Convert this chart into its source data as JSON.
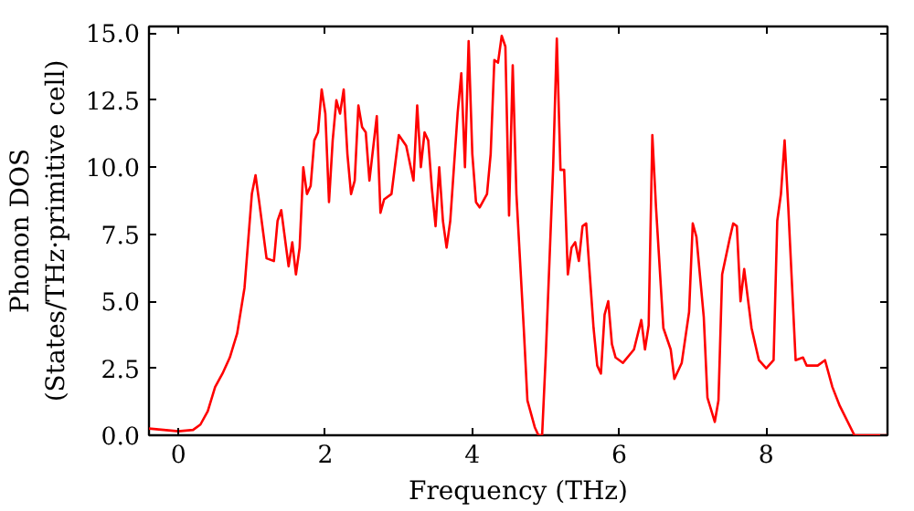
{
  "chart_data": {
    "type": "line",
    "xlabel": "Frequency (THz)",
    "ylabel": "Phonon DOS\n(States/THz·primitive cell)",
    "xlim": [
      -0.4,
      9.65
    ],
    "ylim": [
      0,
      15.25
    ],
    "xticks": [
      0,
      2,
      4,
      6,
      8
    ],
    "yticks": [
      {
        "value": 0,
        "label": "0.0"
      },
      {
        "value": 2.5,
        "label": "2.5"
      },
      {
        "value": 5,
        "label": "5.0"
      },
      {
        "value": 7.5,
        "label": "7.5"
      },
      {
        "value": 10,
        "label": "10.0"
      },
      {
        "value": 12.5,
        "label": "12.5"
      },
      {
        "value": 15,
        "label": "15.0"
      }
    ],
    "grid": false,
    "series": [
      {
        "color": "#ff0000",
        "x": [
          -0.4,
          0,
          0.2,
          0.3,
          0.4,
          0.5,
          0.6,
          0.7,
          0.8,
          0.9,
          1.0,
          1.05,
          1.1,
          1.2,
          1.3,
          1.35,
          1.4,
          1.5,
          1.55,
          1.6,
          1.65,
          1.7,
          1.75,
          1.8,
          1.85,
          1.9,
          1.95,
          2.0,
          2.05,
          2.1,
          2.15,
          2.2,
          2.25,
          2.3,
          2.35,
          2.4,
          2.45,
          2.5,
          2.55,
          2.6,
          2.7,
          2.75,
          2.8,
          2.9,
          3.0,
          3.1,
          3.2,
          3.25,
          3.3,
          3.35,
          3.4,
          3.45,
          3.5,
          3.55,
          3.6,
          3.65,
          3.7,
          3.8,
          3.85,
          3.9,
          3.95,
          4.0,
          4.05,
          4.1,
          4.2,
          4.25,
          4.3,
          4.35,
          4.4,
          4.45,
          4.5,
          4.55,
          4.6,
          4.7,
          4.75,
          4.85,
          4.9,
          4.95,
          5.0,
          5.1,
          5.15,
          5.2,
          5.25,
          5.3,
          5.35,
          5.4,
          5.45,
          5.5,
          5.55,
          5.65,
          5.7,
          5.75,
          5.8,
          5.85,
          5.9,
          5.95,
          6.05,
          6.2,
          6.3,
          6.35,
          6.4,
          6.45,
          6.5,
          6.6,
          6.7,
          6.75,
          6.85,
          6.95,
          7.0,
          7.05,
          7.15,
          7.2,
          7.3,
          7.35,
          7.4,
          7.5,
          7.55,
          7.6,
          7.65,
          7.7,
          7.8,
          7.9,
          8.0,
          8.1,
          8.15,
          8.2,
          8.25,
          8.3,
          8.4,
          8.5,
          8.55,
          8.7,
          8.8,
          8.9,
          9.0,
          9.2,
          9.65
        ],
        "values": [
          0.25,
          0.15,
          0.2,
          0.4,
          0.9,
          1.8,
          2.3,
          2.9,
          3.8,
          5.5,
          9.0,
          9.7,
          8.7,
          6.6,
          6.5,
          8.0,
          8.4,
          6.3,
          7.2,
          6.0,
          7.0,
          10.0,
          9.0,
          9.3,
          11.0,
          11.3,
          12.9,
          12.0,
          8.7,
          11.0,
          12.5,
          12.0,
          12.9,
          10.5,
          9.0,
          9.5,
          12.3,
          11.5,
          11.3,
          9.5,
          11.9,
          8.3,
          8.8,
          9.0,
          11.2,
          10.8,
          9.5,
          12.3,
          10.0,
          11.3,
          11.0,
          9.2,
          7.8,
          10.0,
          8.0,
          7.0,
          8.0,
          12.0,
          13.5,
          10.0,
          14.7,
          10.5,
          8.7,
          8.5,
          9.0,
          10.5,
          14.0,
          13.9,
          14.9,
          14.5,
          8.2,
          13.8,
          9.0,
          4.0,
          1.3,
          0.3,
          0.0,
          0.0,
          3.0,
          10.0,
          14.8,
          9.9,
          9.9,
          6.0,
          7.0,
          7.2,
          6.5,
          7.8,
          7.9,
          4.0,
          2.6,
          2.3,
          4.5,
          5.0,
          3.4,
          2.9,
          2.7,
          3.2,
          4.3,
          3.2,
          4.1,
          11.2,
          8.5,
          4.0,
          3.2,
          2.1,
          2.7,
          4.6,
          7.9,
          7.4,
          4.4,
          1.4,
          0.5,
          1.3,
          6.0,
          7.3,
          7.9,
          7.8,
          5.0,
          6.2,
          4.0,
          2.8,
          2.5,
          2.8,
          8.0,
          9.0,
          11.0,
          8.5,
          2.8,
          2.9,
          2.6,
          2.6,
          2.8,
          1.8,
          1.1,
          0.0,
          0.0
        ]
      }
    ]
  }
}
